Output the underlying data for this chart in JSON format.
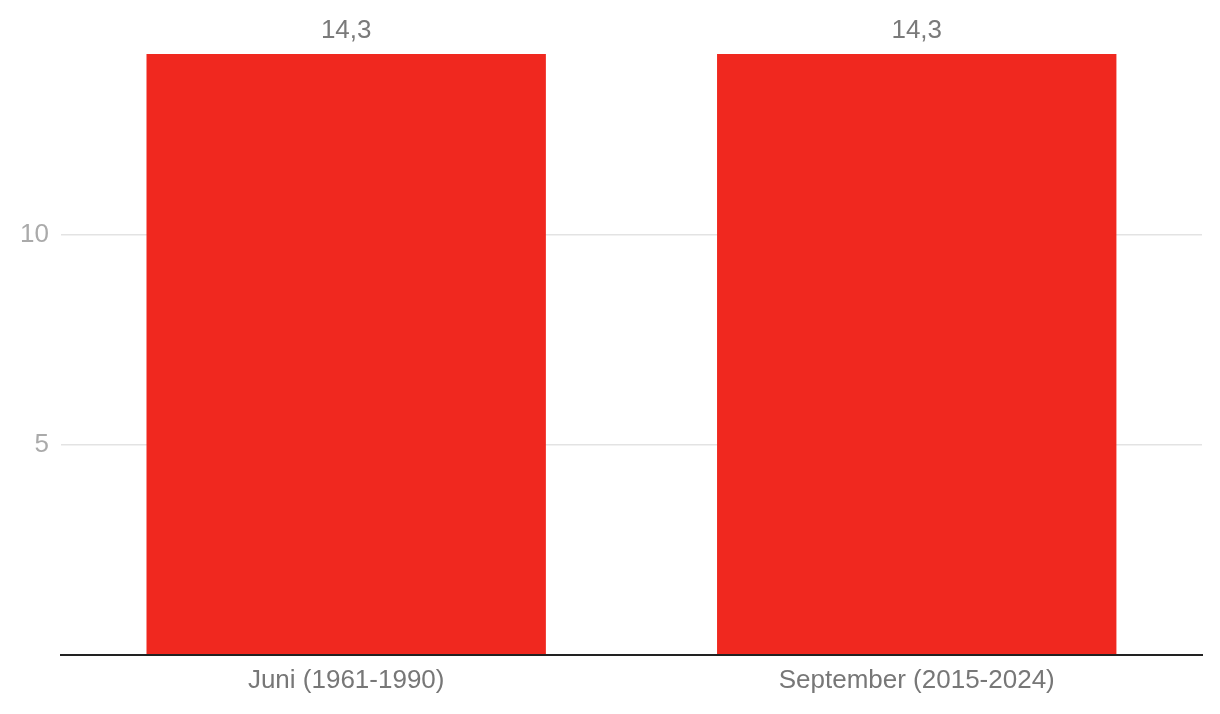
{
  "chart_data": {
    "type": "bar",
    "categories": [
      "Juni (1961-1990)",
      "September (2015-2024)"
    ],
    "values": [
      14.3,
      14.3
    ],
    "color": "#f0281f",
    "value_labels": [
      "14,3",
      "14,3"
    ],
    "ylim": [
      0,
      14.3
    ],
    "yticks": [
      {
        "value": 0,
        "label": null
      },
      5,
      10
    ],
    "grid": "y",
    "legend": false
  }
}
